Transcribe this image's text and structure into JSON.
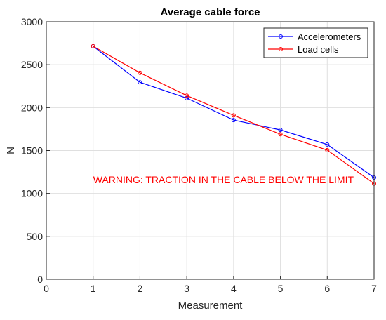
{
  "chart_data": {
    "type": "line",
    "title": "Average cable force",
    "xlabel": "Measurement",
    "ylabel": "N",
    "xlim": [
      0,
      7
    ],
    "ylim": [
      0,
      3000
    ],
    "xticks": [
      "0",
      "1",
      "2",
      "3",
      "4",
      "5",
      "6",
      "7"
    ],
    "yticks": [
      "0",
      "500",
      "1000",
      "1500",
      "2000",
      "2500",
      "3000"
    ],
    "grid": true,
    "legend_position": "top-right",
    "x": [
      1,
      2,
      3,
      4,
      5,
      6,
      7
    ],
    "series": [
      {
        "name": "Accelerometers",
        "color": "#0000ff",
        "values": [
          2715,
          2295,
          2110,
          1855,
          1740,
          1570,
          1185
        ]
      },
      {
        "name": "Load cells",
        "color": "#ff0000",
        "values": [
          2715,
          2405,
          2140,
          1910,
          1690,
          1505,
          1115
        ]
      }
    ],
    "annotation": {
      "text": "WARNING: TRACTION IN THE CABLE BELOW THE LIMIT",
      "color": "#ff0000"
    }
  }
}
